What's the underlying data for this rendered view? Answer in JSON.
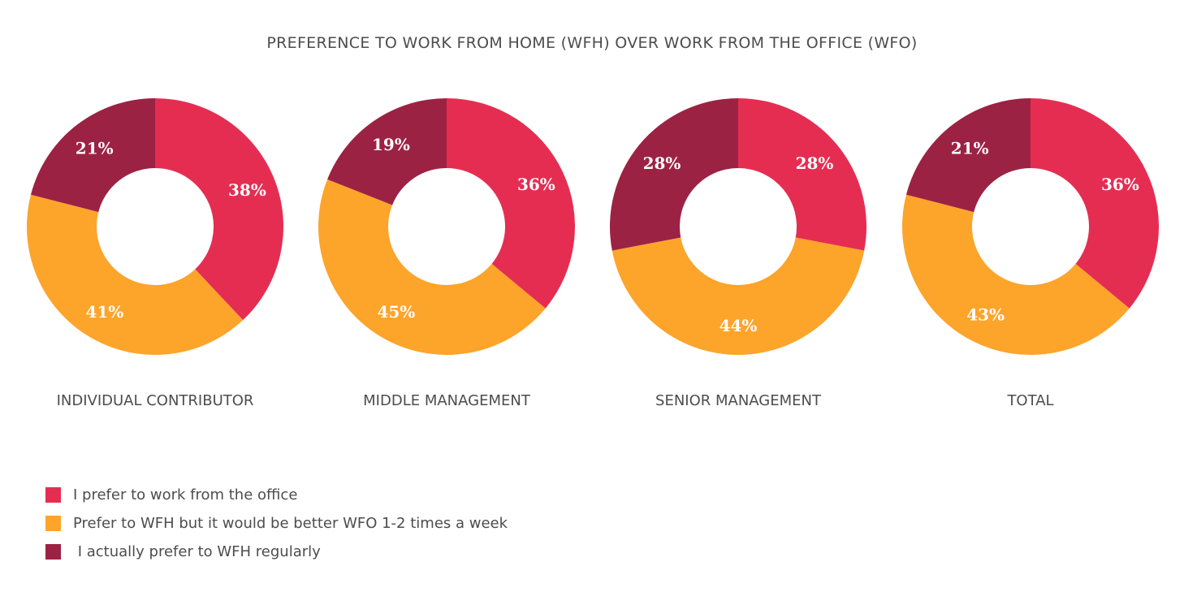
{
  "chart_data": {
    "type": "pie",
    "variant": "donut",
    "title": "PREFERENCE TO WORK FROM HOME (WFH) OVER WORK FROM THE OFFICE (WFO)",
    "categories": [
      "INDIVIDUAL CONTRIBUTOR",
      "MIDDLE MANAGEMENT",
      "SENIOR MANAGEMENT",
      "TOTAL"
    ],
    "series": [
      {
        "name": "I prefer to work from the office",
        "color": "#e52d52",
        "values": [
          38,
          36,
          28,
          36
        ]
      },
      {
        "name": "Prefer to WFH but it would be better WFO 1-2 times a week",
        "color": "#fda42b",
        "values": [
          41,
          45,
          44,
          43
        ]
      },
      {
        "name": " I actually prefer to WFH regularly",
        "color": "#9c2244",
        "values": [
          21,
          19,
          28,
          21
        ]
      }
    ],
    "legend_position": "bottom-left"
  }
}
